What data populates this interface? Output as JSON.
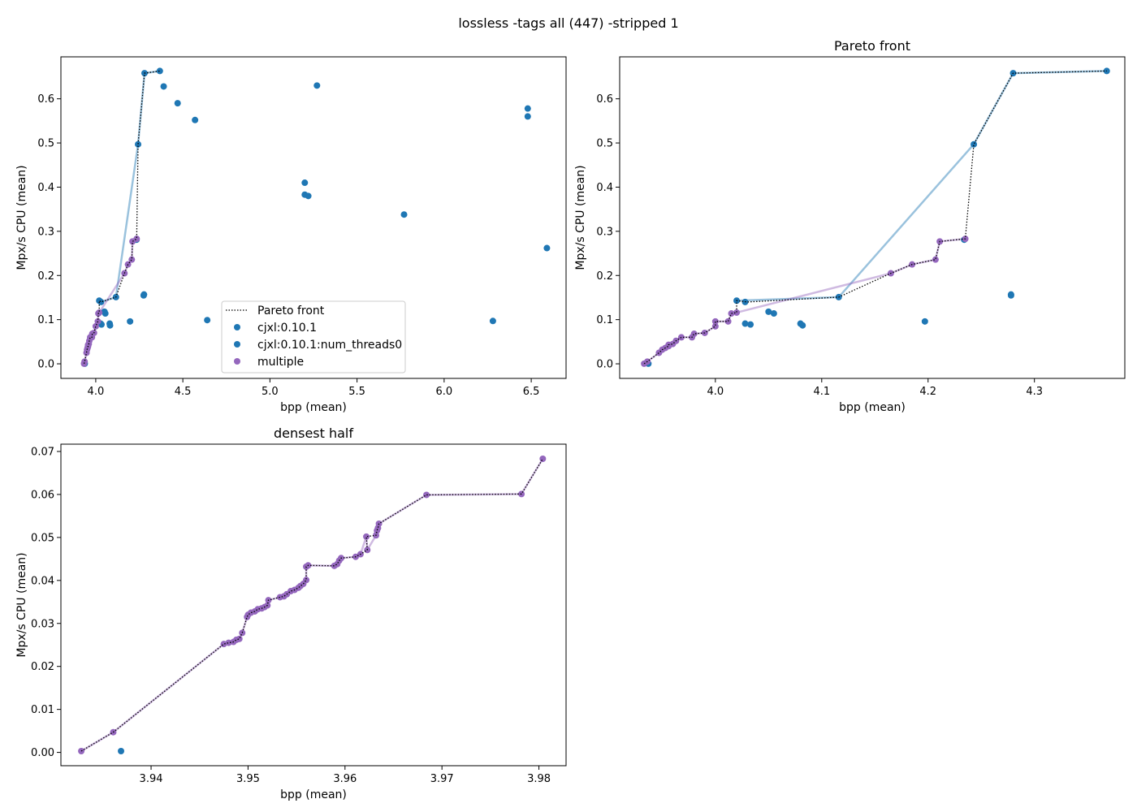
{
  "figure": {
    "suptitle": "lossless -tags all (447) -stripped 1"
  },
  "colors": {
    "blue": "#1f77b4",
    "purple": "#9467bd",
    "front": "#000000"
  },
  "chart_data": [
    {
      "type": "scatter",
      "title": "",
      "xlabel": "bpp (mean)",
      "ylabel": "Mpx/s CPU (mean)",
      "xlim": [
        3.8,
        6.7
      ],
      "ylim": [
        -0.033,
        0.695
      ],
      "xticks": [
        4.0,
        4.5,
        5.0,
        5.5,
        6.0,
        6.5
      ],
      "xtick_labels": [
        "4.0",
        "4.5",
        "5.0",
        "5.5",
        "6.0",
        "6.5"
      ],
      "yticks": [
        0.0,
        0.1,
        0.2,
        0.3,
        0.4,
        0.5,
        0.6
      ],
      "ytick_labels": [
        "0.0",
        "0.1",
        "0.2",
        "0.3",
        "0.4",
        "0.5",
        "0.6"
      ],
      "grid": false,
      "legend": {
        "placement": "lower-center",
        "entries": [
          {
            "label": "Pareto front",
            "kind": "line"
          },
          {
            "label": "cjxl:0.10.1",
            "kind": "marker",
            "color": "#1f77b4"
          },
          {
            "label": "cjxl:0.10.1:num_threads0",
            "kind": "marker",
            "color": "#1f77b4"
          },
          {
            "label": "multiple",
            "kind": "marker",
            "color": "#9467bd"
          }
        ]
      },
      "series": [
        {
          "name": "cjxl:0.10.1",
          "color": "#1f77b4",
          "points": [
            [
              4.02,
              0.143
            ],
            [
              4.03,
              0.14
            ],
            [
              4.05,
              0.118
            ],
            [
              4.055,
              0.114
            ],
            [
              4.08,
              0.091
            ],
            [
              4.082,
              0.087
            ],
            [
              4.116,
              0.151
            ],
            [
              4.197,
              0.096
            ],
            [
              4.234,
              0.281
            ],
            [
              4.243,
              0.497
            ],
            [
              4.275,
              0.155
            ],
            [
              4.277,
              0.157
            ],
            [
              4.28,
              0.658
            ],
            [
              4.368,
              0.663
            ],
            [
              4.39,
              0.628
            ],
            [
              4.47,
              0.59
            ],
            [
              4.57,
              0.552
            ],
            [
              4.64,
              0.099
            ],
            [
              5.2,
              0.41
            ],
            [
              5.2,
              0.383
            ],
            [
              5.22,
              0.38
            ],
            [
              5.27,
              0.63
            ],
            [
              5.77,
              0.338
            ],
            [
              6.28,
              0.097
            ],
            [
              6.48,
              0.578
            ],
            [
              6.48,
              0.56
            ],
            [
              6.59,
              0.262
            ]
          ]
        },
        {
          "name": "cjxl:0.10.1:num_threads0",
          "color": "#1f77b4",
          "points": [
            [
              3.937,
              0.0003
            ],
            [
              4.033,
              0.089
            ],
            [
              4.028,
              0.091
            ]
          ]
        },
        {
          "name": "multiple",
          "color": "#9467bd",
          "points": [
            [
              3.933,
              0.0003
            ],
            [
              3.936,
              0.005
            ],
            [
              3.947,
              0.025
            ],
            [
              3.95,
              0.032
            ],
            [
              3.953,
              0.036
            ],
            [
              3.956,
              0.04
            ],
            [
              3.956,
              0.043
            ],
            [
              3.96,
              0.045
            ],
            [
              3.963,
              0.052
            ],
            [
              3.968,
              0.06
            ],
            [
              3.978,
              0.06
            ],
            [
              3.98,
              0.068
            ],
            [
              3.99,
              0.07
            ],
            [
              4.0,
              0.085
            ],
            [
              4.012,
              0.096
            ],
            [
              4.015,
              0.114
            ],
            [
              4.02,
              0.116
            ],
            [
              4.165,
              0.205
            ],
            [
              4.185,
              0.225
            ],
            [
              4.207,
              0.236
            ],
            [
              4.211,
              0.277
            ],
            [
              4.235,
              0.283
            ]
          ]
        }
      ],
      "pareto_front": [
        [
          3.933,
          0.0003
        ],
        [
          3.936,
          0.005
        ],
        [
          3.947,
          0.025
        ],
        [
          3.95,
          0.032
        ],
        [
          3.953,
          0.036
        ],
        [
          3.956,
          0.04
        ],
        [
          3.956,
          0.043
        ],
        [
          3.96,
          0.045
        ],
        [
          3.963,
          0.052
        ],
        [
          3.968,
          0.06
        ],
        [
          3.978,
          0.06
        ],
        [
          3.98,
          0.068
        ],
        [
          3.99,
          0.07
        ],
        [
          4.0,
          0.085
        ],
        [
          4.012,
          0.096
        ],
        [
          4.015,
          0.114
        ],
        [
          4.02,
          0.116
        ],
        [
          4.02,
          0.143
        ],
        [
          4.03,
          0.14
        ],
        [
          4.116,
          0.151
        ],
        [
          4.165,
          0.205
        ],
        [
          4.185,
          0.225
        ],
        [
          4.207,
          0.236
        ],
        [
          4.211,
          0.277
        ],
        [
          4.235,
          0.283
        ],
        [
          4.243,
          0.497
        ],
        [
          4.28,
          0.658
        ],
        [
          4.368,
          0.663
        ]
      ]
    },
    {
      "type": "scatter",
      "title": "Pareto front",
      "xlabel": "bpp (mean)",
      "ylabel": "Mpx/s CPU (mean)",
      "xlim": [
        3.91,
        4.385
      ],
      "ylim": [
        -0.033,
        0.695
      ],
      "xticks": [
        4.0,
        4.1,
        4.2,
        4.3
      ],
      "xtick_labels": [
        "4.0",
        "4.1",
        "4.2",
        "4.3"
      ],
      "yticks": [
        0.0,
        0.1,
        0.2,
        0.3,
        0.4,
        0.5,
        0.6
      ],
      "ytick_labels": [
        "0.0",
        "0.1",
        "0.2",
        "0.3",
        "0.4",
        "0.5",
        "0.6"
      ],
      "grid": false,
      "series": [
        {
          "name": "cjxl:0.10.1",
          "color": "#1f77b4",
          "points": [
            [
              4.02,
              0.143
            ],
            [
              4.028,
              0.14
            ],
            [
              4.05,
              0.118
            ],
            [
              4.055,
              0.114
            ],
            [
              4.08,
              0.091
            ],
            [
              4.082,
              0.087
            ],
            [
              4.116,
              0.151
            ],
            [
              4.197,
              0.096
            ],
            [
              4.234,
              0.281
            ],
            [
              4.243,
              0.497
            ],
            [
              4.278,
              0.155
            ],
            [
              4.278,
              0.157
            ],
            [
              4.28,
              0.658
            ],
            [
              4.368,
              0.663
            ]
          ]
        },
        {
          "name": "cjxl:0.10.1:num_threads0",
          "color": "#1f77b4",
          "points": [
            [
              3.937,
              0.0003
            ],
            [
              4.033,
              0.089
            ],
            [
              4.028,
              0.091
            ]
          ]
        },
        {
          "name": "multiple",
          "color": "#9467bd",
          "points": [
            [
              3.933,
              0.0003
            ],
            [
              3.936,
              0.005
            ],
            [
              3.947,
              0.025
            ],
            [
              3.95,
              0.032
            ],
            [
              3.953,
              0.036
            ],
            [
              3.956,
              0.04
            ],
            [
              3.956,
              0.043
            ],
            [
              3.96,
              0.045
            ],
            [
              3.963,
              0.052
            ],
            [
              3.968,
              0.06
            ],
            [
              3.978,
              0.06
            ],
            [
              3.98,
              0.068
            ],
            [
              3.99,
              0.07
            ],
            [
              4.0,
              0.085
            ],
            [
              4.0,
              0.096
            ],
            [
              4.012,
              0.096
            ],
            [
              4.015,
              0.114
            ],
            [
              4.02,
              0.116
            ],
            [
              4.165,
              0.205
            ],
            [
              4.185,
              0.225
            ],
            [
              4.207,
              0.236
            ],
            [
              4.211,
              0.277
            ],
            [
              4.235,
              0.283
            ]
          ]
        }
      ],
      "pareto_front": [
        [
          3.933,
          0.0003
        ],
        [
          3.936,
          0.005
        ],
        [
          3.947,
          0.025
        ],
        [
          3.95,
          0.032
        ],
        [
          3.953,
          0.036
        ],
        [
          3.956,
          0.04
        ],
        [
          3.956,
          0.043
        ],
        [
          3.96,
          0.045
        ],
        [
          3.963,
          0.052
        ],
        [
          3.968,
          0.06
        ],
        [
          3.978,
          0.06
        ],
        [
          3.98,
          0.068
        ],
        [
          3.99,
          0.07
        ],
        [
          4.0,
          0.085
        ],
        [
          4.0,
          0.096
        ],
        [
          4.012,
          0.096
        ],
        [
          4.015,
          0.114
        ],
        [
          4.02,
          0.116
        ],
        [
          4.02,
          0.143
        ],
        [
          4.03,
          0.14
        ],
        [
          4.116,
          0.151
        ],
        [
          4.165,
          0.205
        ],
        [
          4.185,
          0.225
        ],
        [
          4.207,
          0.236
        ],
        [
          4.211,
          0.277
        ],
        [
          4.235,
          0.283
        ],
        [
          4.243,
          0.497
        ],
        [
          4.28,
          0.658
        ],
        [
          4.368,
          0.663
        ]
      ]
    },
    {
      "type": "scatter",
      "title": "densest half",
      "xlabel": "bpp (mean)",
      "ylabel": "Mpx/s CPU (mean)",
      "xlim": [
        3.9307,
        3.9828
      ],
      "ylim": [
        -0.0031,
        0.0717
      ],
      "xticks": [
        3.94,
        3.95,
        3.96,
        3.97,
        3.98
      ],
      "xtick_labels": [
        "3.94",
        "3.95",
        "3.96",
        "3.97",
        "3.98"
      ],
      "yticks": [
        0.0,
        0.01,
        0.02,
        0.03,
        0.04,
        0.05,
        0.06,
        0.07
      ],
      "ytick_labels": [
        "0.00",
        "0.01",
        "0.02",
        "0.03",
        "0.04",
        "0.05",
        "0.06",
        "0.07"
      ],
      "grid": false,
      "series": [
        {
          "name": "cjxl:0.10.1:num_threads0",
          "color": "#1f77b4",
          "points": [
            [
              3.9369,
              0.0003
            ]
          ]
        },
        {
          "name": "multiple",
          "color": "#9467bd",
          "points": [
            [
              3.9328,
              0.0003
            ],
            [
              3.9361,
              0.0047
            ],
            [
              3.9475,
              0.0252
            ],
            [
              3.948,
              0.0255
            ],
            [
              3.9485,
              0.0257
            ],
            [
              3.9488,
              0.0262
            ],
            [
              3.9491,
              0.0264
            ],
            [
              3.9494,
              0.0278
            ],
            [
              3.9499,
              0.0315
            ],
            [
              3.95,
              0.032
            ],
            [
              3.9503,
              0.0325
            ],
            [
              3.9507,
              0.0328
            ],
            [
              3.951,
              0.0333
            ],
            [
              3.9514,
              0.0335
            ],
            [
              3.9517,
              0.0338
            ],
            [
              3.952,
              0.0342
            ],
            [
              3.9521,
              0.0354
            ],
            [
              3.9533,
              0.0361
            ],
            [
              3.9537,
              0.0363
            ],
            [
              3.954,
              0.0368
            ],
            [
              3.9544,
              0.0375
            ],
            [
              3.9548,
              0.0378
            ],
            [
              3.9552,
              0.0383
            ],
            [
              3.9554,
              0.0387
            ],
            [
              3.9557,
              0.0392
            ],
            [
              3.956,
              0.0401
            ],
            [
              3.956,
              0.0432
            ],
            [
              3.9562,
              0.0435
            ],
            [
              3.9589,
              0.0434
            ],
            [
              3.9592,
              0.0438
            ],
            [
              3.9594,
              0.0446
            ],
            [
              3.9596,
              0.0452
            ],
            [
              3.9611,
              0.0455
            ],
            [
              3.9616,
              0.0461
            ],
            [
              3.9623,
              0.0471
            ],
            [
              3.9622,
              0.0502
            ],
            [
              3.9632,
              0.0505
            ],
            [
              3.9633,
              0.0516
            ],
            [
              3.9634,
              0.0522
            ],
            [
              3.9635,
              0.0532
            ],
            [
              3.9684,
              0.0599
            ],
            [
              3.9782,
              0.0601
            ],
            [
              3.9804,
              0.0683
            ]
          ]
        }
      ],
      "pareto_front": [
        [
          3.9328,
          0.0003
        ],
        [
          3.9361,
          0.0047
        ],
        [
          3.9475,
          0.0252
        ],
        [
          3.948,
          0.0255
        ],
        [
          3.9485,
          0.0257
        ],
        [
          3.9488,
          0.0262
        ],
        [
          3.9491,
          0.0264
        ],
        [
          3.9494,
          0.0278
        ],
        [
          3.9499,
          0.0315
        ],
        [
          3.95,
          0.032
        ],
        [
          3.9503,
          0.0325
        ],
        [
          3.9507,
          0.0328
        ],
        [
          3.951,
          0.0333
        ],
        [
          3.9514,
          0.0335
        ],
        [
          3.9517,
          0.0338
        ],
        [
          3.952,
          0.0342
        ],
        [
          3.9521,
          0.0354
        ],
        [
          3.9533,
          0.0361
        ],
        [
          3.9537,
          0.0363
        ],
        [
          3.954,
          0.0368
        ],
        [
          3.9544,
          0.0375
        ],
        [
          3.9548,
          0.0378
        ],
        [
          3.9552,
          0.0383
        ],
        [
          3.9554,
          0.0387
        ],
        [
          3.9557,
          0.0392
        ],
        [
          3.956,
          0.0401
        ],
        [
          3.956,
          0.0432
        ],
        [
          3.9562,
          0.0435
        ],
        [
          3.9589,
          0.0434
        ],
        [
          3.9592,
          0.0438
        ],
        [
          3.9594,
          0.0446
        ],
        [
          3.9596,
          0.0452
        ],
        [
          3.9611,
          0.0455
        ],
        [
          3.9616,
          0.0461
        ],
        [
          3.9623,
          0.0471
        ],
        [
          3.9622,
          0.0502
        ],
        [
          3.9632,
          0.0505
        ],
        [
          3.9633,
          0.0516
        ],
        [
          3.9634,
          0.0522
        ],
        [
          3.9635,
          0.0532
        ],
        [
          3.9684,
          0.0599
        ],
        [
          3.9782,
          0.0601
        ],
        [
          3.9804,
          0.0683
        ]
      ]
    }
  ]
}
